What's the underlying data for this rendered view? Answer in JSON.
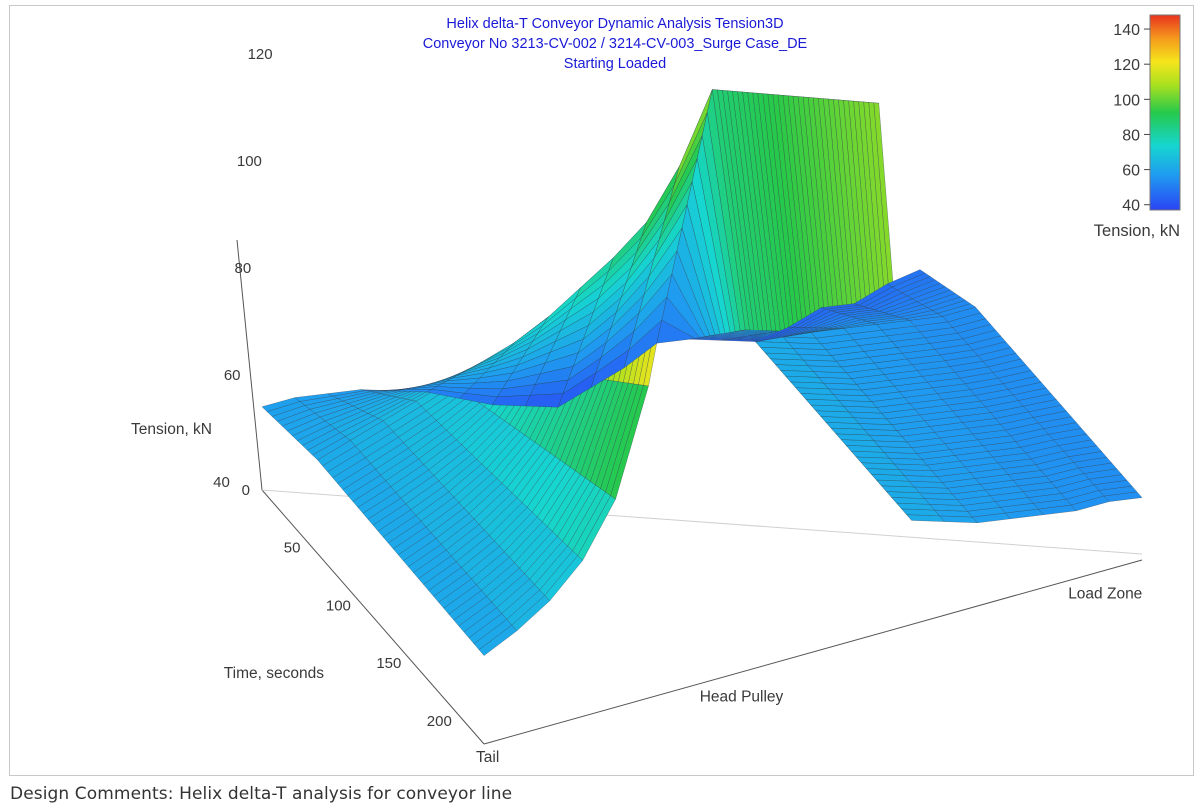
{
  "chart_data": {
    "type": "surface3d",
    "title": "Helix delta-T Conveyor Dynamic Analysis Tension3D",
    "subtitle_lines": [
      "Conveyor No 3213-CV-002 / 3214-CV-003_Surge Case_DE",
      "Starting Loaded"
    ],
    "zlabel": "Tension, kN",
    "ylabel": "Time, seconds",
    "zlim": [
      40,
      145
    ],
    "z_ticks": [
      40,
      60,
      80,
      100,
      120,
      140
    ],
    "ylim": [
      0,
      220
    ],
    "y_ticks": [
      0,
      50,
      100,
      150,
      200
    ],
    "x_labels": [
      {
        "text": "Tail",
        "pos": 0.0
      },
      {
        "text": "Head Pulley",
        "pos": 0.34
      },
      {
        "text": "Load Zone",
        "pos": 0.9
      }
    ],
    "colorbar": {
      "title": "Tension, kN",
      "ticks": [
        40,
        60,
        80,
        100,
        120,
        140
      ],
      "range": [
        37,
        148
      ]
    },
    "surface_profiles": {
      "x_positions": [
        0.0,
        0.05,
        0.1,
        0.15,
        0.2,
        0.25,
        0.3,
        0.35,
        0.4,
        0.45,
        0.5,
        0.55,
        0.6,
        0.65,
        0.7,
        0.75,
        0.8,
        0.85,
        0.9,
        0.95,
        1.0
      ],
      "start_time": [
        56,
        56,
        55,
        54,
        52,
        50,
        47,
        44,
        42,
        40,
        42,
        44,
        47,
        46,
        44,
        42,
        43,
        45,
        44,
        46,
        47
      ],
      "steady_time": [
        58,
        60,
        62,
        64,
        66,
        68,
        70,
        73,
        77,
        81,
        86,
        95,
        108,
        60,
        58,
        56,
        55,
        54,
        53,
        52,
        52
      ],
      "late_time": [
        57,
        60,
        64,
        70,
        80,
        100,
        131,
        130,
        128,
        127,
        127,
        128,
        142,
        60,
        58,
        56,
        55,
        54,
        53,
        53,
        52
      ]
    }
  },
  "caption": "Design Comments: Helix delta-T analysis for conveyor line"
}
